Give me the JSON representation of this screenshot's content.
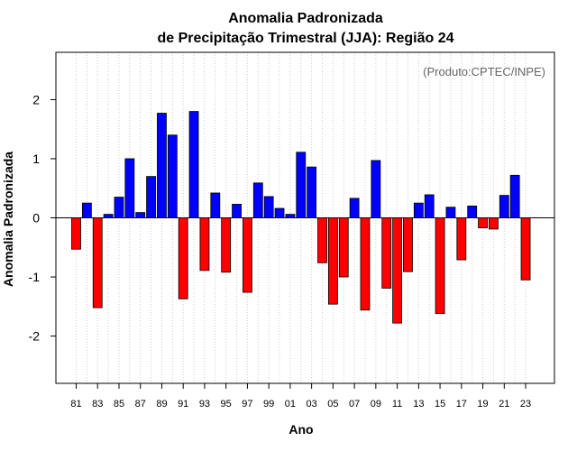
{
  "chart_data": {
    "type": "bar",
    "title": "Anomalia Padronizada",
    "subtitle": "de Precipitação Trimestral (JJA): Região 24",
    "xlabel": "Ano",
    "ylabel": "Anomalia Padronizada",
    "annotation": "(Produto:CPTEC/INPE)",
    "ylim": [
      -2.8,
      2.8
    ],
    "yticks": [
      -2,
      -1,
      0,
      1,
      2
    ],
    "ytick_labels": [
      "-2",
      "-1",
      "0",
      "1",
      "2"
    ],
    "grid": "vertical dotted",
    "colors": {
      "positive": "#0000ff",
      "negative": "#ff0000"
    },
    "categories": [
      "81",
      "82",
      "83",
      "84",
      "85",
      "86",
      "87",
      "88",
      "89",
      "90",
      "91",
      "92",
      "93",
      "94",
      "95",
      "96",
      "97",
      "98",
      "99",
      "00",
      "01",
      "02",
      "03",
      "04",
      "05",
      "06",
      "07",
      "08",
      "09",
      "10",
      "11",
      "12",
      "13",
      "14",
      "15",
      "16",
      "17",
      "18",
      "19",
      "20",
      "21",
      "22",
      "23"
    ],
    "xtick_labels": [
      "81",
      "83",
      "85",
      "87",
      "89",
      "91",
      "93",
      "95",
      "97",
      "99",
      "01",
      "03",
      "05",
      "07",
      "09",
      "11",
      "13",
      "15",
      "17",
      "19",
      "21",
      "23"
    ],
    "values": [
      -0.53,
      0.25,
      -1.52,
      0.06,
      0.35,
      1.0,
      0.09,
      0.7,
      1.77,
      1.4,
      -1.37,
      1.8,
      -0.89,
      0.42,
      -0.92,
      0.23,
      -1.26,
      0.59,
      0.36,
      0.16,
      0.06,
      1.11,
      0.86,
      -0.76,
      -1.46,
      -1.0,
      0.33,
      -1.56,
      0.97,
      -1.19,
      -1.78,
      -0.91,
      0.25,
      0.39,
      -1.62,
      0.18,
      -0.71,
      0.2,
      -0.17,
      -0.19,
      0.38,
      0.72,
      -1.05
    ]
  }
}
